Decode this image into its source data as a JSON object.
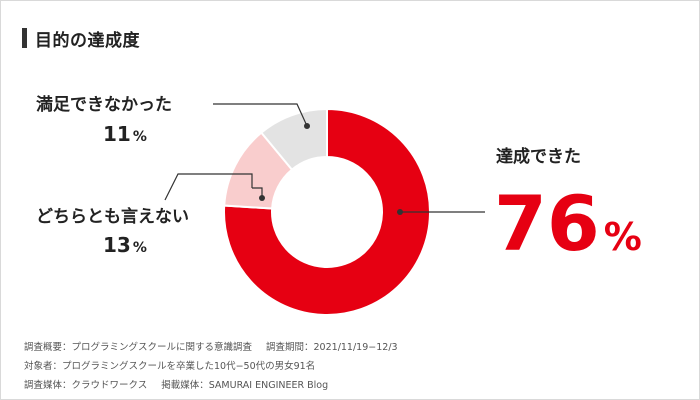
{
  "header": {
    "title": "目的の達成度"
  },
  "chart_data": {
    "type": "pie",
    "style": "donut",
    "slices": [
      {
        "label": "達成できた",
        "value": 76,
        "value_text": "76",
        "unit": "%",
        "color": "#e60012"
      },
      {
        "label": "どちらとも言えない",
        "value": 13,
        "value_text": "13",
        "unit": "%",
        "color": "#f9cdcd"
      },
      {
        "label": "満足できなかった",
        "value": 11,
        "value_text": "11",
        "unit": "%",
        "color": "#e3e3e3"
      }
    ],
    "start_angle_deg": 0,
    "direction": "clockwise"
  },
  "notes": {
    "line1a": "調査概要：プログラミングスクールに関する意識調査",
    "line1b": "調査期間：2021/11/19−12/3",
    "line2": "対象者：プログラミングスクールを卒業した10代−50代の男女91名",
    "line3a": "調査媒体：クラウドワークス",
    "line3b": "掲載媒体：SAMURAI ENGINEER Blog"
  },
  "colors": {
    "accent": "#e60012",
    "text": "#222222",
    "leader": "#333333"
  }
}
